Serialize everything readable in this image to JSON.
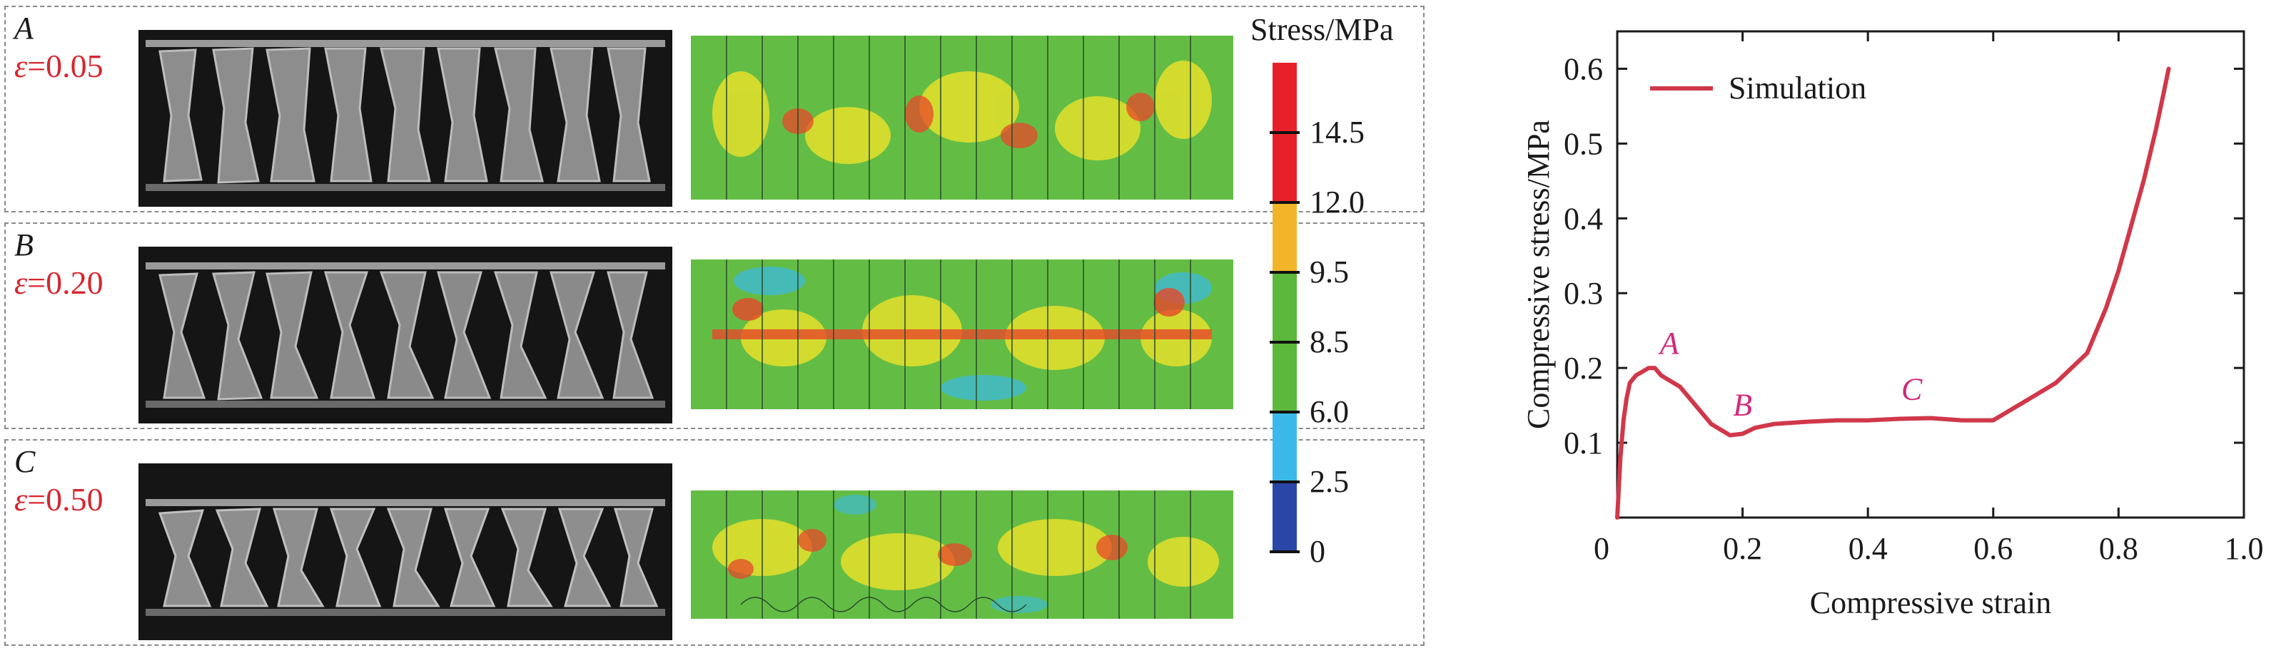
{
  "panels": [
    {
      "id": "A",
      "strain": "0.05"
    },
    {
      "id": "B",
      "strain": "0.20"
    },
    {
      "id": "C",
      "strain": "0.50"
    }
  ],
  "strain_symbol": "ε",
  "colorbar": {
    "title": "Stress/MPa",
    "ticks": [
      "14.5",
      "12.0",
      "9.5",
      "8.5",
      "6.0",
      "2.5",
      "0"
    ],
    "colors": [
      "#e8202a",
      "#e8202a",
      "#f2b52a",
      "#5cb83a",
      "#5cb83a",
      "#3ab9e8",
      "#2a47a8"
    ]
  },
  "chart_data": {
    "type": "line",
    "xlabel": "Compressive strain",
    "ylabel": "Compressive stress/MPa",
    "xlim": [
      0,
      1.0
    ],
    "ylim": [
      0,
      0.65
    ],
    "xticks": [
      "0",
      "0.2",
      "0.4",
      "0.6",
      "0.8",
      "1.0"
    ],
    "yticks": [
      "0.1",
      "0.2",
      "0.3",
      "0.4",
      "0.5",
      "0.6"
    ],
    "legend_position": "top-left",
    "series": [
      {
        "name": "Simulation",
        "color": "#d0384a",
        "x": [
          0.0,
          0.005,
          0.01,
          0.015,
          0.02,
          0.03,
          0.04,
          0.05,
          0.06,
          0.065,
          0.07,
          0.08,
          0.1,
          0.12,
          0.15,
          0.18,
          0.2,
          0.22,
          0.25,
          0.3,
          0.35,
          0.4,
          0.45,
          0.5,
          0.55,
          0.6,
          0.62,
          0.65,
          0.7,
          0.75,
          0.78,
          0.8,
          0.82,
          0.84,
          0.86,
          0.87,
          0.88
        ],
        "y": [
          0.0,
          0.08,
          0.13,
          0.16,
          0.18,
          0.19,
          0.195,
          0.2,
          0.2,
          0.195,
          0.19,
          0.185,
          0.175,
          0.155,
          0.125,
          0.11,
          0.112,
          0.12,
          0.125,
          0.128,
          0.13,
          0.13,
          0.132,
          0.133,
          0.13,
          0.13,
          0.14,
          0.155,
          0.18,
          0.22,
          0.28,
          0.33,
          0.39,
          0.45,
          0.52,
          0.56,
          0.6
        ]
      }
    ],
    "annotations": [
      {
        "text": "A",
        "x": 0.065,
        "y": 0.2
      },
      {
        "text": "B",
        "x": 0.2,
        "y": 0.112
      },
      {
        "text": "C",
        "x": 0.47,
        "y": 0.133
      }
    ]
  }
}
